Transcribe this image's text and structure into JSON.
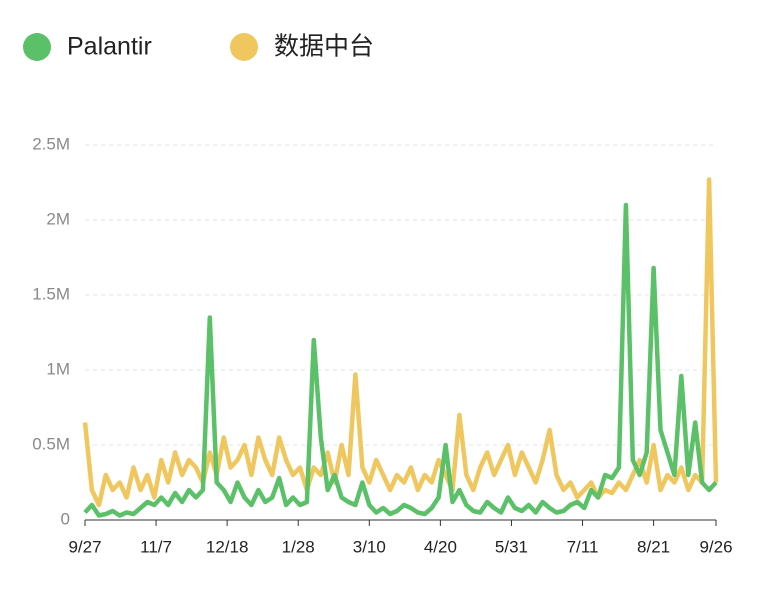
{
  "chart_data": {
    "type": "line",
    "x": [
      0,
      4,
      8,
      12,
      16,
      20,
      24,
      28,
      32,
      36,
      40,
      44,
      48,
      52,
      56,
      60,
      64,
      68,
      72,
      76,
      80,
      84,
      88,
      92,
      96,
      100,
      104,
      108,
      112,
      116,
      120,
      124,
      128,
      132,
      136,
      140,
      144,
      148,
      152,
      156,
      160,
      164,
      168,
      172,
      176,
      180,
      184,
      188,
      192,
      196,
      200,
      204,
      208,
      212,
      216,
      220,
      224,
      228,
      232,
      236,
      240,
      244,
      248,
      252,
      256,
      260,
      264,
      268,
      272,
      276,
      280,
      284,
      288,
      292,
      296,
      300,
      304,
      308,
      312,
      316,
      320,
      324,
      328,
      332,
      336,
      340,
      344,
      348,
      352,
      356,
      360,
      364
    ],
    "xlim": [
      0,
      364
    ],
    "xticks": [
      {
        "value": 0,
        "label": "9/27"
      },
      {
        "value": 41,
        "label": "11/7"
      },
      {
        "value": 82,
        "label": "12/18"
      },
      {
        "value": 123,
        "label": "1/28"
      },
      {
        "value": 164,
        "label": "3/10"
      },
      {
        "value": 205,
        "label": "4/20"
      },
      {
        "value": 246,
        "label": "5/31"
      },
      {
        "value": 287,
        "label": "7/11"
      },
      {
        "value": 328,
        "label": "8/21"
      },
      {
        "value": 364,
        "label": "9/26"
      }
    ],
    "ylim": [
      0,
      2.5
    ],
    "yticks": [
      0,
      {
        "value": 0.5,
        "label": "0.5M"
      },
      {
        "value": 1,
        "label": "1M"
      },
      {
        "value": 1.5,
        "label": "1.5M"
      },
      {
        "value": 2,
        "label": "2M"
      },
      {
        "value": 2.5,
        "label": "2.5M"
      }
    ],
    "grid": true,
    "series": [
      {
        "name": "Palantir",
        "color": "#5bc168",
        "values": [
          0.05,
          0.1,
          0.03,
          0.04,
          0.06,
          0.03,
          0.05,
          0.04,
          0.08,
          0.12,
          0.1,
          0.15,
          0.1,
          0.18,
          0.12,
          0.2,
          0.15,
          0.2,
          1.35,
          0.25,
          0.2,
          0.12,
          0.25,
          0.15,
          0.1,
          0.2,
          0.12,
          0.15,
          0.28,
          0.1,
          0.15,
          0.1,
          0.12,
          1.2,
          0.55,
          0.2,
          0.3,
          0.15,
          0.12,
          0.1,
          0.25,
          0.1,
          0.05,
          0.08,
          0.04,
          0.06,
          0.1,
          0.08,
          0.05,
          0.04,
          0.08,
          0.15,
          0.5,
          0.12,
          0.2,
          0.1,
          0.06,
          0.05,
          0.12,
          0.08,
          0.05,
          0.15,
          0.08,
          0.06,
          0.1,
          0.05,
          0.12,
          0.08,
          0.05,
          0.06,
          0.1,
          0.12,
          0.08,
          0.2,
          0.15,
          0.3,
          0.28,
          0.35,
          2.1,
          0.4,
          0.3,
          0.45,
          1.68,
          0.6,
          0.45,
          0.3,
          0.96,
          0.3,
          0.65,
          0.25,
          0.2,
          0.25
        ]
      },
      {
        "name": "数据中台",
        "color": "#f0c75e",
        "values": [
          0.65,
          0.2,
          0.1,
          0.3,
          0.2,
          0.25,
          0.15,
          0.35,
          0.2,
          0.3,
          0.15,
          0.4,
          0.25,
          0.45,
          0.3,
          0.4,
          0.35,
          0.25,
          0.45,
          0.3,
          0.55,
          0.35,
          0.4,
          0.5,
          0.3,
          0.55,
          0.4,
          0.3,
          0.55,
          0.4,
          0.3,
          0.35,
          0.2,
          0.35,
          0.3,
          0.45,
          0.25,
          0.5,
          0.3,
          0.97,
          0.35,
          0.25,
          0.4,
          0.3,
          0.2,
          0.3,
          0.25,
          0.35,
          0.2,
          0.3,
          0.25,
          0.4,
          0.3,
          0.2,
          0.7,
          0.3,
          0.2,
          0.35,
          0.45,
          0.3,
          0.4,
          0.5,
          0.3,
          0.45,
          0.35,
          0.25,
          0.4,
          0.6,
          0.3,
          0.2,
          0.25,
          0.15,
          0.2,
          0.25,
          0.15,
          0.2,
          0.18,
          0.25,
          0.2,
          0.3,
          0.4,
          0.25,
          0.5,
          0.2,
          0.3,
          0.25,
          0.35,
          0.2,
          0.3,
          0.25,
          2.27,
          0.25
        ]
      }
    ]
  }
}
